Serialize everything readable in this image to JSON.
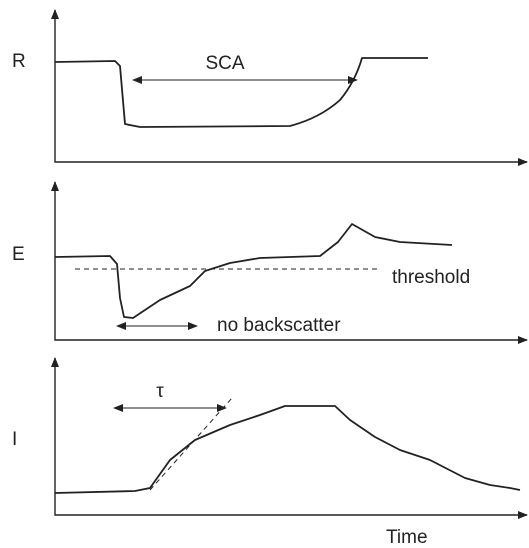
{
  "panels": [
    {
      "label": "R",
      "annotation": "SCA"
    },
    {
      "label": "E",
      "threshold": "threshold",
      "annotation": "no backscatter"
    },
    {
      "label": "I",
      "annotation": "τ"
    }
  ],
  "x_label": "Time"
}
